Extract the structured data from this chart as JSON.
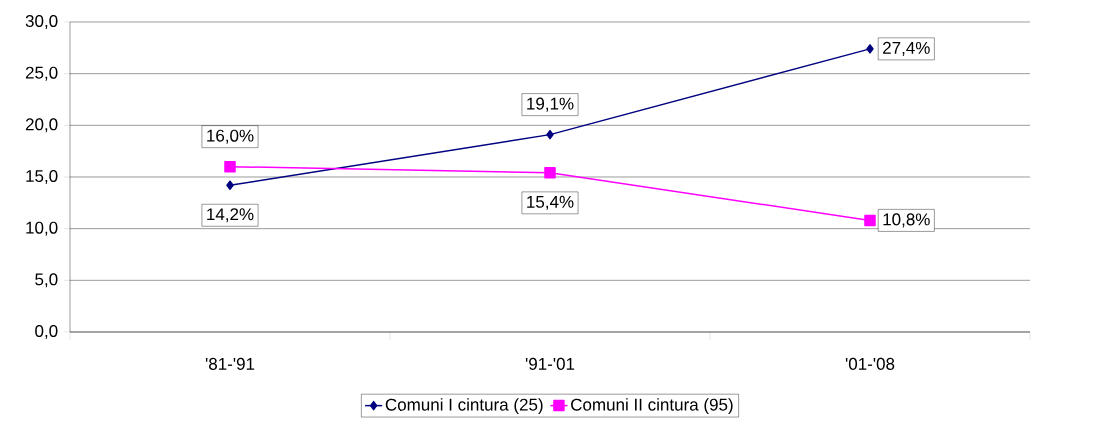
{
  "chart_data": {
    "type": "line",
    "categories": [
      "'81-'91",
      "'91-'01",
      "'01-'08"
    ],
    "series": [
      {
        "name": "Comuni I cintura (25)",
        "color": "#000080",
        "marker": "diamond",
        "values": [
          14.2,
          19.1,
          27.4
        ],
        "value_labels": [
          "14,2%",
          "19,1%",
          "27,4%"
        ]
      },
      {
        "name": "Comuni II cintura (95)",
        "color": "#ff00ff",
        "marker": "square",
        "values": [
          16.0,
          15.4,
          10.8
        ],
        "value_labels": [
          "16,0%",
          "15,4%",
          "10,8%"
        ]
      }
    ],
    "ylim": [
      0,
      30
    ],
    "yticks": [
      {
        "value": 0,
        "label": "0,0"
      },
      {
        "value": 5,
        "label": "5,0"
      },
      {
        "value": 10,
        "label": "10,0"
      },
      {
        "value": 15,
        "label": "15,0"
      },
      {
        "value": 20,
        "label": "20,0"
      },
      {
        "value": 25,
        "label": "25,0"
      },
      {
        "value": 30,
        "label": "30,0"
      }
    ],
    "grid": "y",
    "legend": "bottom",
    "line_style": "solid"
  }
}
